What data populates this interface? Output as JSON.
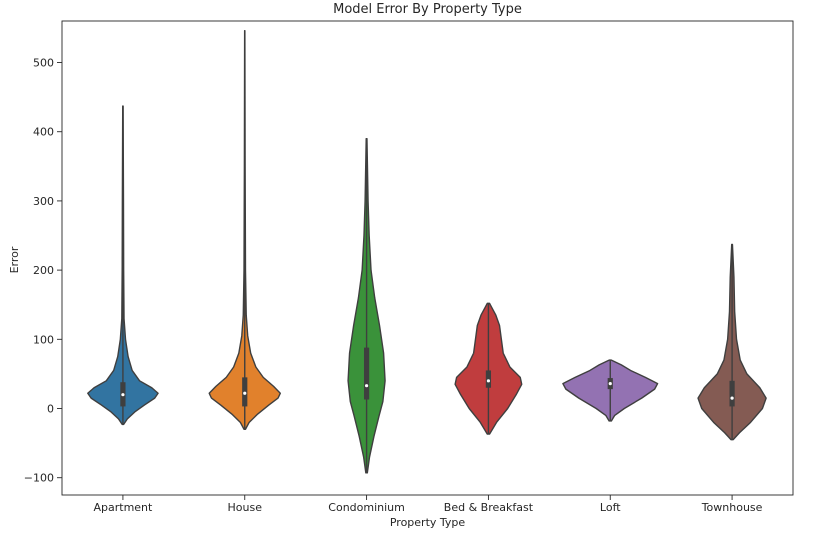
{
  "chart_data": {
    "type": "violin",
    "title": "Model Error By Property Type",
    "xlabel": "Property Type",
    "ylabel": "Error",
    "ylim": [
      -125,
      560
    ],
    "yticks": [
      -100,
      0,
      100,
      200,
      300,
      400,
      500
    ],
    "grid": false,
    "legend": "none",
    "categories": [
      "Apartment",
      "House",
      "Condominium",
      "Bed & Breakfast",
      "Loft",
      "Townhouse"
    ],
    "series": [
      {
        "category": "Apartment",
        "color": "#3274a1",
        "min": -23,
        "max": 437,
        "q1": 3,
        "median": 20,
        "q3": 38,
        "density": [
          [
            -23,
            0.02
          ],
          [
            -15,
            0.12
          ],
          [
            -5,
            0.32
          ],
          [
            5,
            0.58
          ],
          [
            15,
            0.86
          ],
          [
            22,
            0.95
          ],
          [
            30,
            0.78
          ],
          [
            40,
            0.45
          ],
          [
            55,
            0.25
          ],
          [
            75,
            0.14
          ],
          [
            100,
            0.07
          ],
          [
            130,
            0.03
          ],
          [
            200,
            0.02
          ],
          [
            300,
            0.015
          ],
          [
            437,
            0.005
          ]
        ]
      },
      {
        "category": "House",
        "color": "#e1812c",
        "min": -30,
        "max": 546,
        "q1": 3,
        "median": 22,
        "q3": 45,
        "density": [
          [
            -30,
            0.02
          ],
          [
            -20,
            0.12
          ],
          [
            -8,
            0.35
          ],
          [
            5,
            0.65
          ],
          [
            15,
            0.9
          ],
          [
            22,
            0.96
          ],
          [
            32,
            0.78
          ],
          [
            45,
            0.5
          ],
          [
            60,
            0.3
          ],
          [
            80,
            0.16
          ],
          [
            105,
            0.08
          ],
          [
            135,
            0.04
          ],
          [
            200,
            0.02
          ],
          [
            350,
            0.01
          ],
          [
            546,
            0.003
          ]
        ]
      },
      {
        "category": "Condominium",
        "color": "#3a923a",
        "min": -93,
        "max": 390,
        "q1": 13,
        "median": 33,
        "q3": 88,
        "density": [
          [
            -93,
            0.02
          ],
          [
            -70,
            0.08
          ],
          [
            -40,
            0.2
          ],
          [
            -10,
            0.34
          ],
          [
            10,
            0.44
          ],
          [
            40,
            0.5
          ],
          [
            80,
            0.46
          ],
          [
            120,
            0.35
          ],
          [
            160,
            0.22
          ],
          [
            200,
            0.12
          ],
          [
            250,
            0.07
          ],
          [
            300,
            0.04
          ],
          [
            390,
            0.01
          ]
        ]
      },
      {
        "category": "Bed & Breakfast",
        "color": "#c03d3e",
        "min": -37,
        "max": 152,
        "q1": 30,
        "median": 40,
        "q3": 55,
        "density": [
          [
            -37,
            0.03
          ],
          [
            -20,
            0.22
          ],
          [
            0,
            0.52
          ],
          [
            20,
            0.75
          ],
          [
            35,
            0.9
          ],
          [
            45,
            0.86
          ],
          [
            60,
            0.58
          ],
          [
            80,
            0.4
          ],
          [
            100,
            0.35
          ],
          [
            120,
            0.3
          ],
          [
            135,
            0.2
          ],
          [
            145,
            0.1
          ],
          [
            152,
            0.03
          ]
        ]
      },
      {
        "category": "Loft",
        "color": "#9372b2",
        "min": -18,
        "max": 70,
        "q1": 28,
        "median": 36,
        "q3": 44,
        "density": [
          [
            -18,
            0.03
          ],
          [
            -10,
            0.12
          ],
          [
            0,
            0.38
          ],
          [
            15,
            0.85
          ],
          [
            28,
            1.2
          ],
          [
            36,
            1.28
          ],
          [
            45,
            0.95
          ],
          [
            55,
            0.55
          ],
          [
            63,
            0.3
          ],
          [
            70,
            0.03
          ]
        ]
      },
      {
        "category": "Townhouse",
        "color": "#845b53",
        "min": -45,
        "max": 237,
        "q1": 3,
        "median": 15,
        "q3": 40,
        "density": [
          [
            -45,
            0.03
          ],
          [
            -35,
            0.2
          ],
          [
            -20,
            0.5
          ],
          [
            0,
            0.82
          ],
          [
            15,
            0.92
          ],
          [
            30,
            0.75
          ],
          [
            50,
            0.4
          ],
          [
            70,
            0.22
          ],
          [
            100,
            0.12
          ],
          [
            140,
            0.07
          ],
          [
            190,
            0.05
          ],
          [
            237,
            0.01
          ]
        ]
      }
    ]
  }
}
